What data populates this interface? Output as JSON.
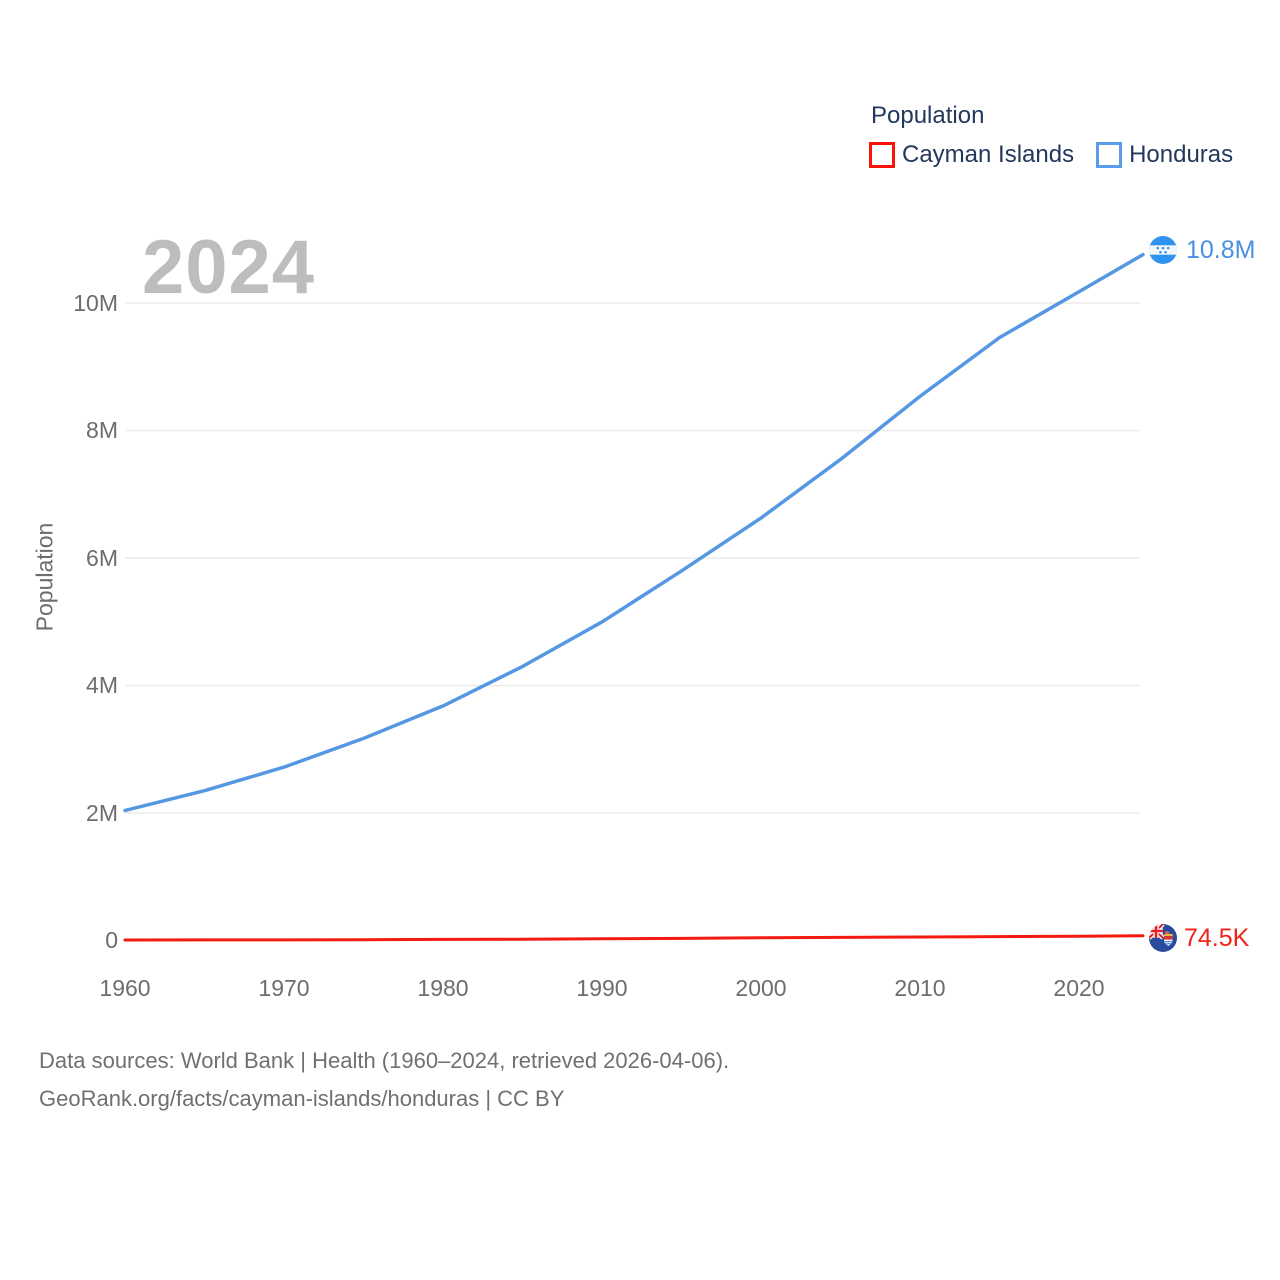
{
  "watermark": {
    "text": "2024"
  },
  "legend": {
    "title": "Population",
    "items": [
      {
        "id": "cayman-islands",
        "label": "Cayman Islands",
        "color": "#fb1108"
      },
      {
        "id": "honduras",
        "label": "Honduras",
        "color": "#5b9ce8"
      }
    ]
  },
  "y_axis": {
    "title": "Population",
    "ticks": [
      "10M",
      "8M",
      "6M",
      "4M",
      "2M",
      "0"
    ]
  },
  "x_axis": {
    "ticks": [
      "1960",
      "1970",
      "1980",
      "1990",
      "2000",
      "2010",
      "2020"
    ]
  },
  "end_labels": [
    {
      "series": "Honduras",
      "text": "10.8M",
      "color": "#4a90e2"
    },
    {
      "series": "Cayman Islands",
      "text": "74.5K",
      "color": "#ef2317"
    }
  ],
  "footer": {
    "line1": "Data sources: World Bank | Health (1960–2024, retrieved 2026-04-06).",
    "line2": "GeoRank.org/facts/cayman-islands/honduras | CC BY"
  },
  "chart_data": {
    "type": "line",
    "title": "Population",
    "ylabel": "Population",
    "xlabel": "",
    "x": [
      1960,
      1965,
      1970,
      1975,
      1980,
      1985,
      1990,
      1995,
      2000,
      2005,
      2010,
      2015,
      2020,
      2024
    ],
    "series": [
      {
        "name": "Honduras",
        "color": "#5697e3",
        "stroke_width": 3.5,
        "values": [
          2040000,
          2350000,
          2720000,
          3170000,
          3680000,
          4300000,
          5000000,
          5800000,
          6630000,
          7550000,
          8540000,
          9460000,
          10180000,
          10760000
        ]
      },
      {
        "name": "Cayman Islands",
        "color": "#f41a10",
        "stroke_width": 3,
        "values": [
          8100,
          9000,
          10100,
          12800,
          17000,
          21000,
          26300,
          33100,
          41800,
          49200,
          55500,
          61000,
          68100,
          74500
        ]
      }
    ],
    "xlim": [
      1960,
      2024
    ],
    "ylim": [
      0,
      10800000
    ],
    "y_gridlines": [
      2000000,
      4000000,
      6000000,
      8000000,
      10000000
    ],
    "grid": "horizontal-only",
    "legend_position": "top-right",
    "end_labels": {
      "Honduras": "10.8M",
      "Cayman Islands": "74.5K"
    },
    "watermark": "2024"
  }
}
